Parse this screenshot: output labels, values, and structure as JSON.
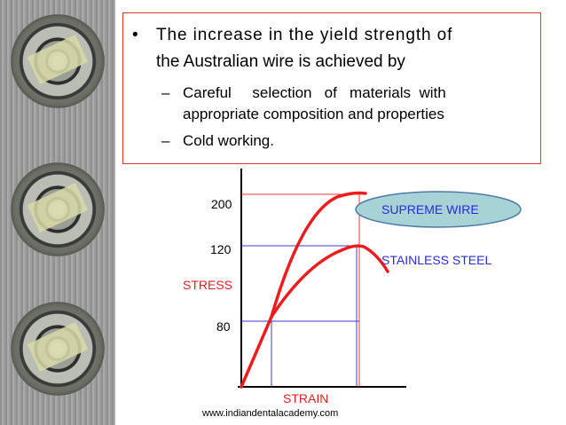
{
  "slide": {
    "bullet": [
      "The increase in the yield strength of",
      "the Australian wire is achieved by"
    ],
    "sub_bullets": [
      {
        "lines": [
          "Careful     selection   of   materials  with",
          "appropriate composition and properties"
        ]
      },
      {
        "lines": [
          "Cold working."
        ]
      }
    ],
    "footer": "www.indiandentalacademy.com"
  },
  "colors": {
    "box_border": "#e3342f",
    "curve": "#ee1c1c",
    "guide_red": "#e83a3a",
    "guide_blue": "#3b3bd6",
    "label_blue": "#2b2bd8",
    "label_red": "#e02222",
    "bubble_fill": "#a7d3d6",
    "bubble_border": "#4f7aa8"
  },
  "chart_data": {
    "type": "line",
    "ylabel": "STRESS",
    "xlabel": "STRAIN",
    "y_ticks": [
      200,
      120,
      80
    ],
    "series": [
      {
        "name": "SUPREME WIRE",
        "label_style": "bubble"
      },
      {
        "name": "STAINLESS STEEL",
        "label_style": "text"
      }
    ]
  }
}
